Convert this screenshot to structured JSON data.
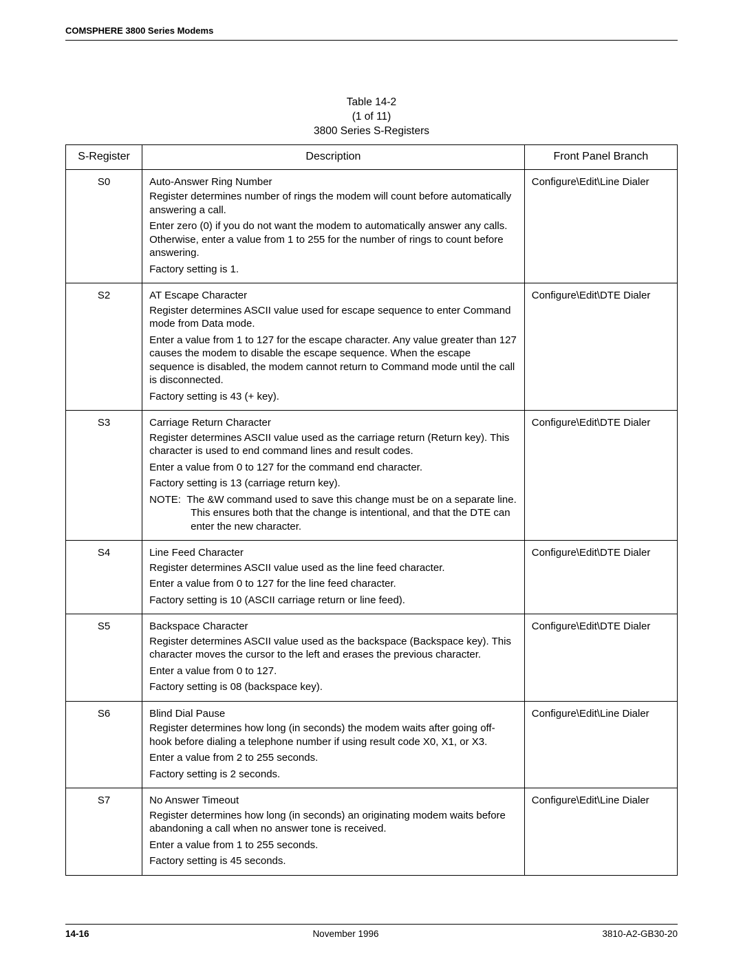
{
  "header": {
    "title": "COMSPHERE 3800 Series Modems"
  },
  "caption": {
    "table_no": "Table 14-2",
    "page_of": "(1 of 11)",
    "title": "3800 Series S-Registers"
  },
  "columns": {
    "c0": "S-Register",
    "c1": "Description",
    "c2": "Front Panel Branch"
  },
  "rows": [
    {
      "reg": "S0",
      "front": "Configure\\Edit\\Line Dialer",
      "desc": [
        "Auto-Answer Ring Number",
        "Register determines number of rings the modem will count before automatically answering a call.",
        "Enter zero (0) if you do not want the modem to automatically answer any calls. Otherwise, enter a value from 1 to 255 for the number of rings to count before answering.",
        "Factory setting is 1."
      ],
      "gaps": [
        false,
        false,
        true,
        true
      ]
    },
    {
      "reg": "S2",
      "front": "Configure\\Edit\\DTE Dialer",
      "desc": [
        "AT Escape Character",
        "Register determines ASCII value used for escape sequence to enter Command mode from Data mode.",
        "Enter a value from 1 to 127 for the escape character. Any value greater than 127 causes the modem to disable the escape sequence. When the escape sequence is disabled, the modem cannot return to Command mode until the call is disconnected.",
        "Factory setting is 43 (+ key)."
      ],
      "gaps": [
        false,
        false,
        true,
        true
      ]
    },
    {
      "reg": "S3",
      "front": "Configure\\Edit\\DTE Dialer",
      "desc": [
        "Carriage Return Character",
        "Register determines ASCII value used as the carriage return (Return key). This character is used to end command lines and result codes.",
        "Enter a value from 0 to 127 for the command end character.",
        "Factory setting is 13 (carriage return key)."
      ],
      "gaps": [
        false,
        false,
        true,
        true
      ],
      "note_label": "NOTE:",
      "note_body": "The &W command used to save this change must be on a separate line. This ensures both that the change is intentional, and that the DTE can enter the new character."
    },
    {
      "reg": "S4",
      "front": "Configure\\Edit\\DTE Dialer",
      "desc": [
        "Line Feed Character",
        "Register determines ASCII value used as the line feed character.",
        "Enter a value from 0 to 127 for the line feed character.",
        "Factory setting is 10 (ASCII carriage return or line feed)."
      ],
      "gaps": [
        false,
        false,
        true,
        true
      ]
    },
    {
      "reg": "S5",
      "front": "Configure\\Edit\\DTE Dialer",
      "desc": [
        "Backspace Character",
        "Register determines ASCII value used as the backspace (Backspace key). This character moves the cursor to the left and erases the previous character.",
        "Enter a value from 0 to 127.",
        "Factory setting is 08 (backspace key)."
      ],
      "gaps": [
        false,
        false,
        true,
        true
      ]
    },
    {
      "reg": "S6",
      "front": "Configure\\Edit\\Line Dialer",
      "desc": [
        "Blind Dial Pause",
        "Register determines how long (in seconds) the modem waits after going off-hook before dialing a telephone number if using result code X0, X1, or X3.",
        "Enter a value from 2 to 255 seconds.",
        "Factory setting is 2 seconds."
      ],
      "gaps": [
        false,
        false,
        true,
        true
      ]
    },
    {
      "reg": "S7",
      "front": "Configure\\Edit\\Line Dialer",
      "desc": [
        "No Answer Timeout",
        "Register determines how long (in seconds) an originating modem waits before abandoning a call when no answer tone is received.",
        "Enter a value from 1 to 255 seconds.",
        "Factory setting is 45 seconds."
      ],
      "gaps": [
        false,
        false,
        true,
        true
      ]
    }
  ],
  "footer": {
    "page": "14-16",
    "date": "November 1996",
    "doc": "3810-A2-GB30-20"
  }
}
